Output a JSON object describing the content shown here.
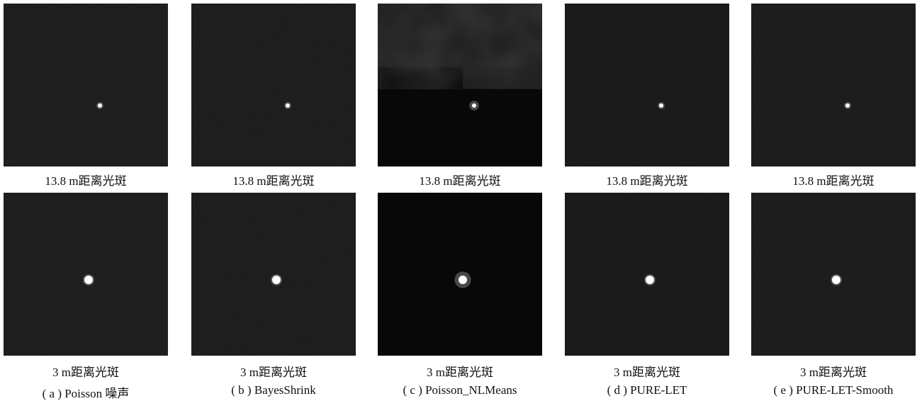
{
  "columns": [
    {
      "label": "( a ) Poisson 噪声",
      "rows": [
        {
          "caption": "13.8 m距离光斑"
        },
        {
          "caption": "3 m距离光斑"
        }
      ]
    },
    {
      "label": "( b ) BayesShrink",
      "rows": [
        {
          "caption": "13.8 m距离光斑"
        },
        {
          "caption": "3 m距离光斑"
        }
      ]
    },
    {
      "label": "( c ) Poisson_NLMeans",
      "rows": [
        {
          "caption": "13.8 m距离光斑"
        },
        {
          "caption": "3 m距离光斑"
        }
      ]
    },
    {
      "label": "( d ) PURE-LET",
      "rows": [
        {
          "caption": "13.8 m距离光斑"
        },
        {
          "caption": "3 m距离光斑"
        }
      ]
    },
    {
      "label": "( e ) PURE-LET-Smooth",
      "rows": [
        {
          "caption": "13.8 m距离光斑"
        },
        {
          "caption": "3 m距离光斑"
        }
      ]
    }
  ]
}
